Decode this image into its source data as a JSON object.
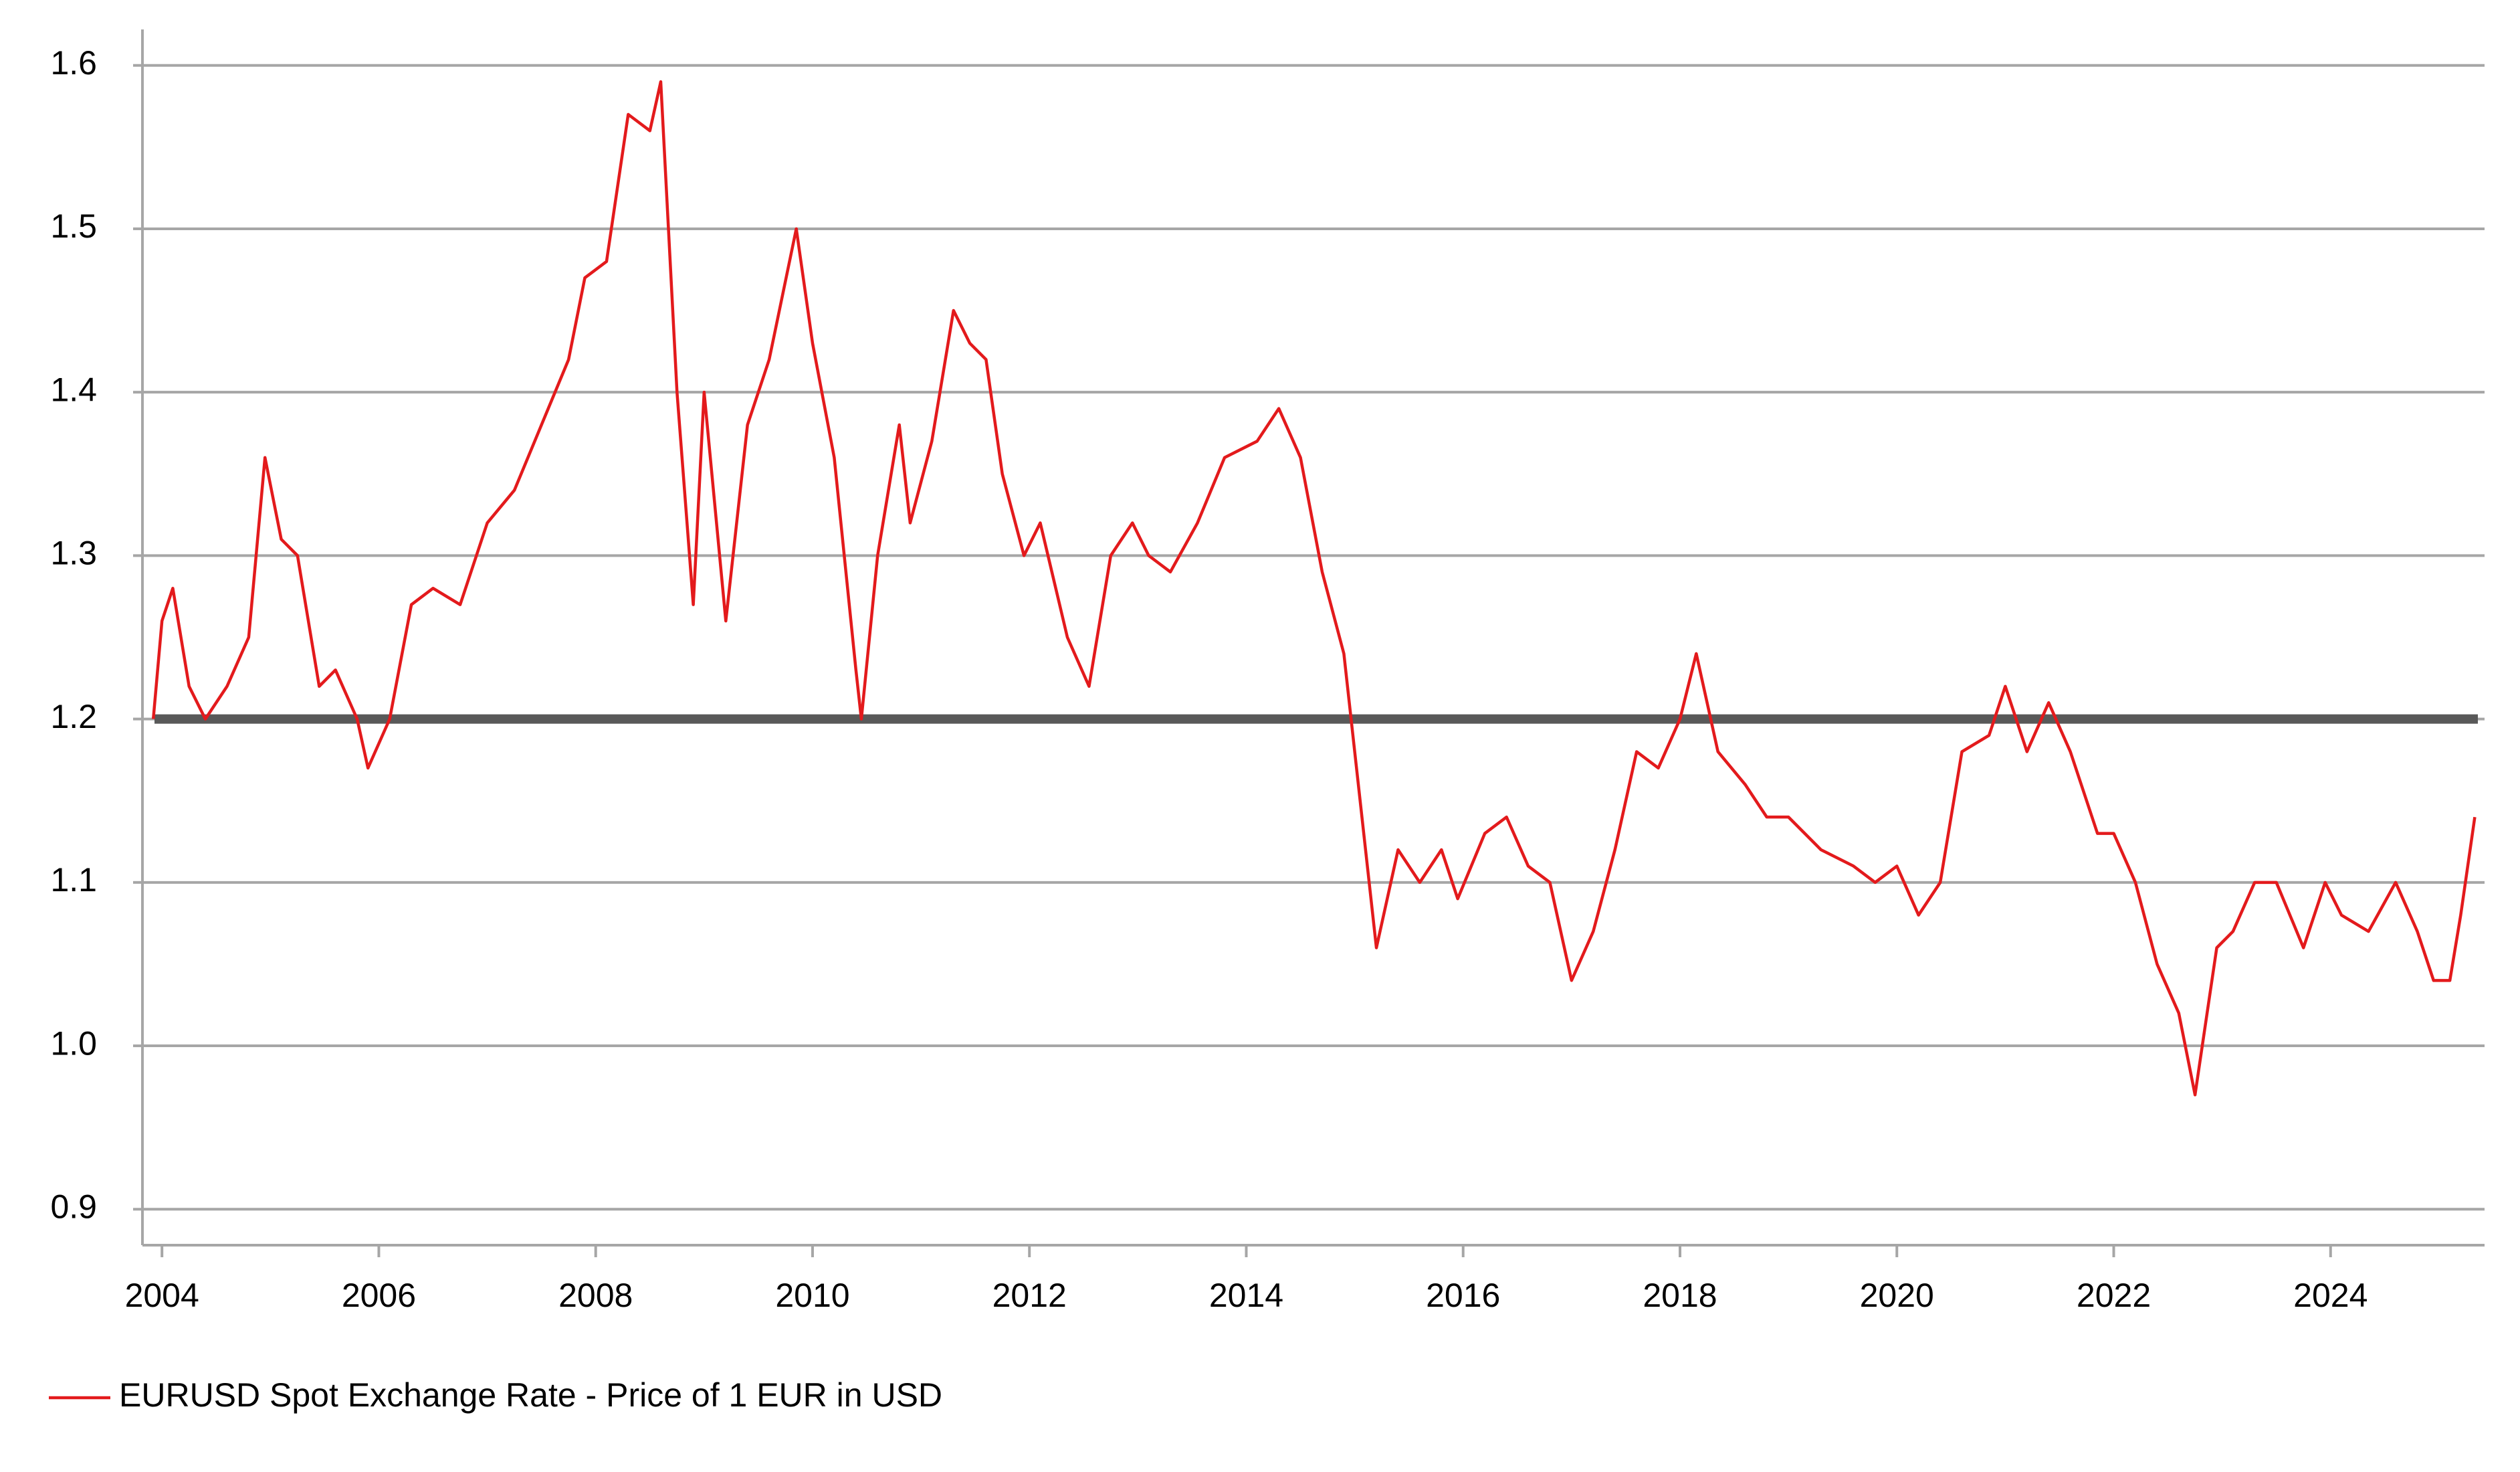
{
  "chart_data": {
    "type": "line",
    "x": [
      2003.92,
      2004.0,
      2004.1,
      2004.25,
      2004.4,
      2004.6,
      2004.8,
      2004.95,
      2005.1,
      2005.25,
      2005.45,
      2005.6,
      2005.8,
      2005.9,
      2006.1,
      2006.3,
      2006.5,
      2006.75,
      2007.0,
      2007.25,
      2007.5,
      2007.75,
      2007.9,
      2008.1,
      2008.3,
      2008.5,
      2008.6,
      2008.75,
      2008.9,
      2009.0,
      2009.2,
      2009.4,
      2009.6,
      2009.85,
      2010.0,
      2010.2,
      2010.4,
      2010.45,
      2010.6,
      2010.8,
      2010.9,
      2011.1,
      2011.3,
      2011.45,
      2011.6,
      2011.75,
      2011.95,
      2012.1,
      2012.35,
      2012.55,
      2012.75,
      2012.95,
      2013.1,
      2013.3,
      2013.55,
      2013.8,
      2014.1,
      2014.3,
      2014.5,
      2014.7,
      2014.9,
      2015.1,
      2015.2,
      2015.4,
      2015.6,
      2015.8,
      2015.95,
      2016.2,
      2016.4,
      2016.6,
      2016.8,
      2017.0,
      2017.2,
      2017.4,
      2017.6,
      2017.8,
      2018.0,
      2018.15,
      2018.35,
      2018.6,
      2018.8,
      2019.0,
      2019.3,
      2019.6,
      2019.8,
      2020.0,
      2020.2,
      2020.4,
      2020.6,
      2020.85,
      2021.0,
      2021.2,
      2021.4,
      2021.6,
      2021.85,
      2022.0,
      2022.2,
      2022.4,
      2022.6,
      2022.75,
      2022.95,
      2023.1,
      2023.3,
      2023.5,
      2023.75,
      2023.95,
      2024.1,
      2024.35,
      2024.6,
      2024.8,
      2024.95,
      2025.1,
      2025.2,
      2025.33
    ],
    "series": [
      {
        "name": "EURUSD Spot Exchange Rate - Price of 1 EUR in USD",
        "color": "#e31a1c",
        "values": [
          1.2,
          1.26,
          1.28,
          1.22,
          1.2,
          1.22,
          1.25,
          1.36,
          1.31,
          1.3,
          1.22,
          1.23,
          1.2,
          1.17,
          1.2,
          1.27,
          1.28,
          1.27,
          1.32,
          1.34,
          1.38,
          1.42,
          1.47,
          1.48,
          1.57,
          1.56,
          1.59,
          1.4,
          1.27,
          1.4,
          1.26,
          1.38,
          1.42,
          1.5,
          1.43,
          1.36,
          1.23,
          1.2,
          1.3,
          1.38,
          1.32,
          1.37,
          1.45,
          1.43,
          1.42,
          1.35,
          1.3,
          1.32,
          1.25,
          1.22,
          1.3,
          1.32,
          1.3,
          1.29,
          1.32,
          1.36,
          1.37,
          1.39,
          1.36,
          1.29,
          1.24,
          1.12,
          1.06,
          1.12,
          1.1,
          1.12,
          1.09,
          1.13,
          1.14,
          1.11,
          1.1,
          1.04,
          1.07,
          1.12,
          1.18,
          1.17,
          1.2,
          1.24,
          1.18,
          1.16,
          1.14,
          1.14,
          1.12,
          1.11,
          1.1,
          1.11,
          1.08,
          1.1,
          1.18,
          1.19,
          1.22,
          1.18,
          1.21,
          1.18,
          1.13,
          1.13,
          1.1,
          1.05,
          1.02,
          0.97,
          1.06,
          1.07,
          1.1,
          1.1,
          1.06,
          1.1,
          1.08,
          1.07,
          1.1,
          1.07,
          1.04,
          1.04,
          1.08,
          1.14
        ]
      }
    ],
    "reference_line": {
      "value": 1.2,
      "color": "#595959"
    },
    "xlim": [
      2003.82,
      2025.42
    ],
    "xticks": [
      2004,
      2006,
      2008,
      2010,
      2012,
      2014,
      2016,
      2018,
      2020,
      2022,
      2024
    ],
    "ylim": [
      0.878,
      1.622
    ],
    "yticks": [
      0.9,
      {
        "value": 1,
        "label": "1.0"
      },
      1.1,
      1.2,
      1.3,
      1.4,
      1.5,
      1.6
    ],
    "grid": true
  }
}
